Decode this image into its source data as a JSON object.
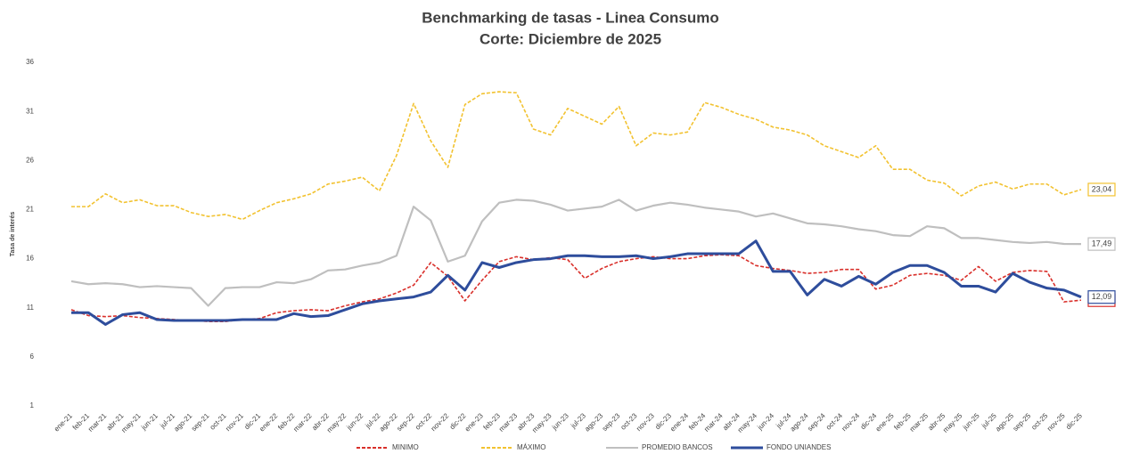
{
  "chart_data": {
    "type": "line",
    "title": "Benchmarking de tasas - Linea Consumo",
    "subtitle": "Corte: Diciembre de 2025",
    "y_label": "Tasa de interés",
    "categories": [
      "ene-21",
      "feb-21",
      "mar-21",
      "abr-21",
      "may-21",
      "jun-21",
      "jul-21",
      "ago-21",
      "sep-21",
      "oct-21",
      "nov-21",
      "dic-21",
      "ene-22",
      "feb-22",
      "mar-22",
      "abr-22",
      "may-22",
      "jun-22",
      "jul-22",
      "ago-22",
      "sep-22",
      "oct-22",
      "nov-22",
      "dic-22",
      "ene-23",
      "feb-23",
      "mar-23",
      "abr-23",
      "may-23",
      "jun-23",
      "jul-23",
      "ago-23",
      "sep-23",
      "oct-23",
      "nov-23",
      "dic-23",
      "ene-24",
      "feb-24",
      "mar-24",
      "abr-24",
      "may-24",
      "jun-24",
      "jul-24",
      "ago-24",
      "sep-24",
      "oct-24",
      "nov-24",
      "dic-24",
      "ene-25",
      "feb-25",
      "mar-25",
      "abr-25",
      "may-25",
      "jun-25",
      "jul-25",
      "ago-25",
      "sep-25",
      "oct-25",
      "nov-25",
      "dic-25"
    ],
    "ylim": [
      1,
      36
    ],
    "yticks": [
      1,
      6,
      11,
      16,
      21,
      26,
      31,
      36
    ],
    "grid": false,
    "legend": "bottom",
    "series": [
      {
        "name": "MINIMO",
        "color": "#d9302b",
        "dash": true,
        "values": [
          10.8,
          10.2,
          10.1,
          10.2,
          10.0,
          9.9,
          9.8,
          9.7,
          9.6,
          9.6,
          9.8,
          9.9,
          10.5,
          10.7,
          10.8,
          10.7,
          11.2,
          11.6,
          11.9,
          12.5,
          13.3,
          15.6,
          14.2,
          11.7,
          13.8,
          15.7,
          16.2,
          15.9,
          16.1,
          15.9,
          14.0,
          15.0,
          15.7,
          16.0,
          16.2,
          16.0,
          16.0,
          16.3,
          16.4,
          16.3,
          15.3,
          15.0,
          14.8,
          14.5,
          14.6,
          14.9,
          14.9,
          12.9,
          13.3,
          14.3,
          14.5,
          14.3,
          13.8,
          15.2,
          13.7,
          14.6,
          14.8,
          14.7,
          11.6,
          11.77
        ],
        "value_labels": [
          null,
          null,
          null,
          null,
          null,
          null,
          null,
          null,
          null,
          null,
          null,
          null,
          null,
          null,
          null,
          null,
          null,
          null,
          null,
          null,
          null,
          null,
          null,
          null,
          null,
          null,
          null,
          null,
          null,
          null,
          null,
          null,
          null,
          null,
          null,
          null,
          null,
          null,
          null,
          null,
          null,
          null,
          null,
          null,
          null,
          null,
          null,
          null,
          null,
          null,
          null,
          null,
          null,
          null,
          null,
          null,
          null,
          null,
          null,
          "11,77"
        ]
      },
      {
        "name": "MÁXIMO",
        "color": "#f2c230",
        "dash": true,
        "values": [
          21.3,
          21.3,
          22.6,
          21.7,
          22.0,
          21.4,
          21.4,
          20.7,
          20.3,
          20.5,
          20.0,
          20.9,
          21.7,
          22.1,
          22.6,
          23.6,
          23.9,
          24.3,
          22.9,
          26.5,
          31.8,
          28.0,
          25.3,
          31.7,
          32.8,
          33.0,
          32.9,
          29.2,
          28.6,
          31.3,
          30.5,
          29.7,
          31.5,
          27.5,
          28.8,
          28.6,
          28.9,
          31.9,
          31.4,
          30.7,
          30.2,
          29.4,
          29.1,
          28.6,
          27.5,
          26.9,
          26.3,
          27.5,
          25.1,
          25.1,
          24.0,
          23.7,
          22.4,
          23.4,
          23.8,
          23.1,
          23.6,
          23.6,
          22.5,
          23.04
        ],
        "value_labels": [
          null,
          null,
          null,
          null,
          null,
          null,
          null,
          null,
          null,
          null,
          null,
          null,
          null,
          null,
          null,
          null,
          null,
          null,
          null,
          null,
          null,
          null,
          null,
          null,
          null,
          null,
          null,
          null,
          null,
          null,
          null,
          null,
          null,
          null,
          null,
          null,
          null,
          null,
          null,
          null,
          null,
          null,
          null,
          null,
          null,
          null,
          null,
          null,
          null,
          null,
          null,
          null,
          null,
          null,
          null,
          null,
          null,
          null,
          null,
          "23,04"
        ]
      },
      {
        "name": "PROMEDIO BANCOS",
        "color": "#bfbfbf",
        "dash": false,
        "values": [
          13.7,
          13.4,
          13.5,
          13.4,
          13.1,
          13.2,
          13.1,
          13.0,
          11.2,
          13.0,
          13.1,
          13.1,
          13.6,
          13.5,
          13.9,
          14.8,
          14.9,
          15.3,
          15.6,
          16.3,
          21.3,
          19.9,
          15.7,
          16.3,
          19.8,
          21.7,
          22.0,
          21.9,
          21.5,
          20.9,
          21.1,
          21.3,
          22.0,
          20.9,
          21.4,
          21.7,
          21.5,
          21.2,
          21.0,
          20.8,
          20.3,
          20.6,
          20.1,
          19.6,
          19.5,
          19.3,
          19.0,
          18.8,
          18.4,
          18.3,
          19.3,
          19.1,
          18.1,
          18.1,
          17.9,
          17.7,
          17.6,
          17.7,
          17.5,
          17.49
        ],
        "value_labels": [
          null,
          null,
          null,
          null,
          null,
          null,
          null,
          null,
          null,
          null,
          null,
          null,
          null,
          null,
          null,
          null,
          null,
          null,
          null,
          null,
          null,
          null,
          null,
          null,
          null,
          null,
          null,
          null,
          null,
          null,
          null,
          null,
          null,
          null,
          null,
          null,
          null,
          null,
          null,
          null,
          null,
          null,
          null,
          null,
          null,
          null,
          null,
          null,
          null,
          null,
          null,
          null,
          null,
          null,
          null,
          null,
          null,
          null,
          null,
          "17,49"
        ]
      },
      {
        "name": "FONDO UNIANDES",
        "color": "#2e4d9c",
        "dash": false,
        "values": [
          10.5,
          10.5,
          9.3,
          10.3,
          10.5,
          9.8,
          9.7,
          9.7,
          9.7,
          9.7,
          9.8,
          9.8,
          9.8,
          10.4,
          10.1,
          10.2,
          10.8,
          11.4,
          11.7,
          11.9,
          12.1,
          12.6,
          14.3,
          12.8,
          15.6,
          15.1,
          15.6,
          15.9,
          16.0,
          16.3,
          16.3,
          16.2,
          16.2,
          16.3,
          16.0,
          16.2,
          16.5,
          16.5,
          16.5,
          16.5,
          17.8,
          14.7,
          14.7,
          12.3,
          13.9,
          13.2,
          14.2,
          13.4,
          14.6,
          15.3,
          15.3,
          14.6,
          13.2,
          13.2,
          12.6,
          14.5,
          13.6,
          13.0,
          12.8,
          12.09
        ],
        "value_labels": [
          null,
          null,
          null,
          null,
          null,
          null,
          null,
          null,
          null,
          null,
          null,
          null,
          null,
          null,
          null,
          null,
          null,
          null,
          null,
          null,
          null,
          null,
          null,
          null,
          null,
          null,
          null,
          null,
          null,
          null,
          null,
          null,
          null,
          null,
          null,
          null,
          null,
          null,
          null,
          null,
          null,
          null,
          null,
          null,
          null,
          null,
          null,
          null,
          null,
          null,
          null,
          null,
          null,
          null,
          null,
          null,
          null,
          null,
          null,
          "12,09"
        ]
      }
    ]
  }
}
